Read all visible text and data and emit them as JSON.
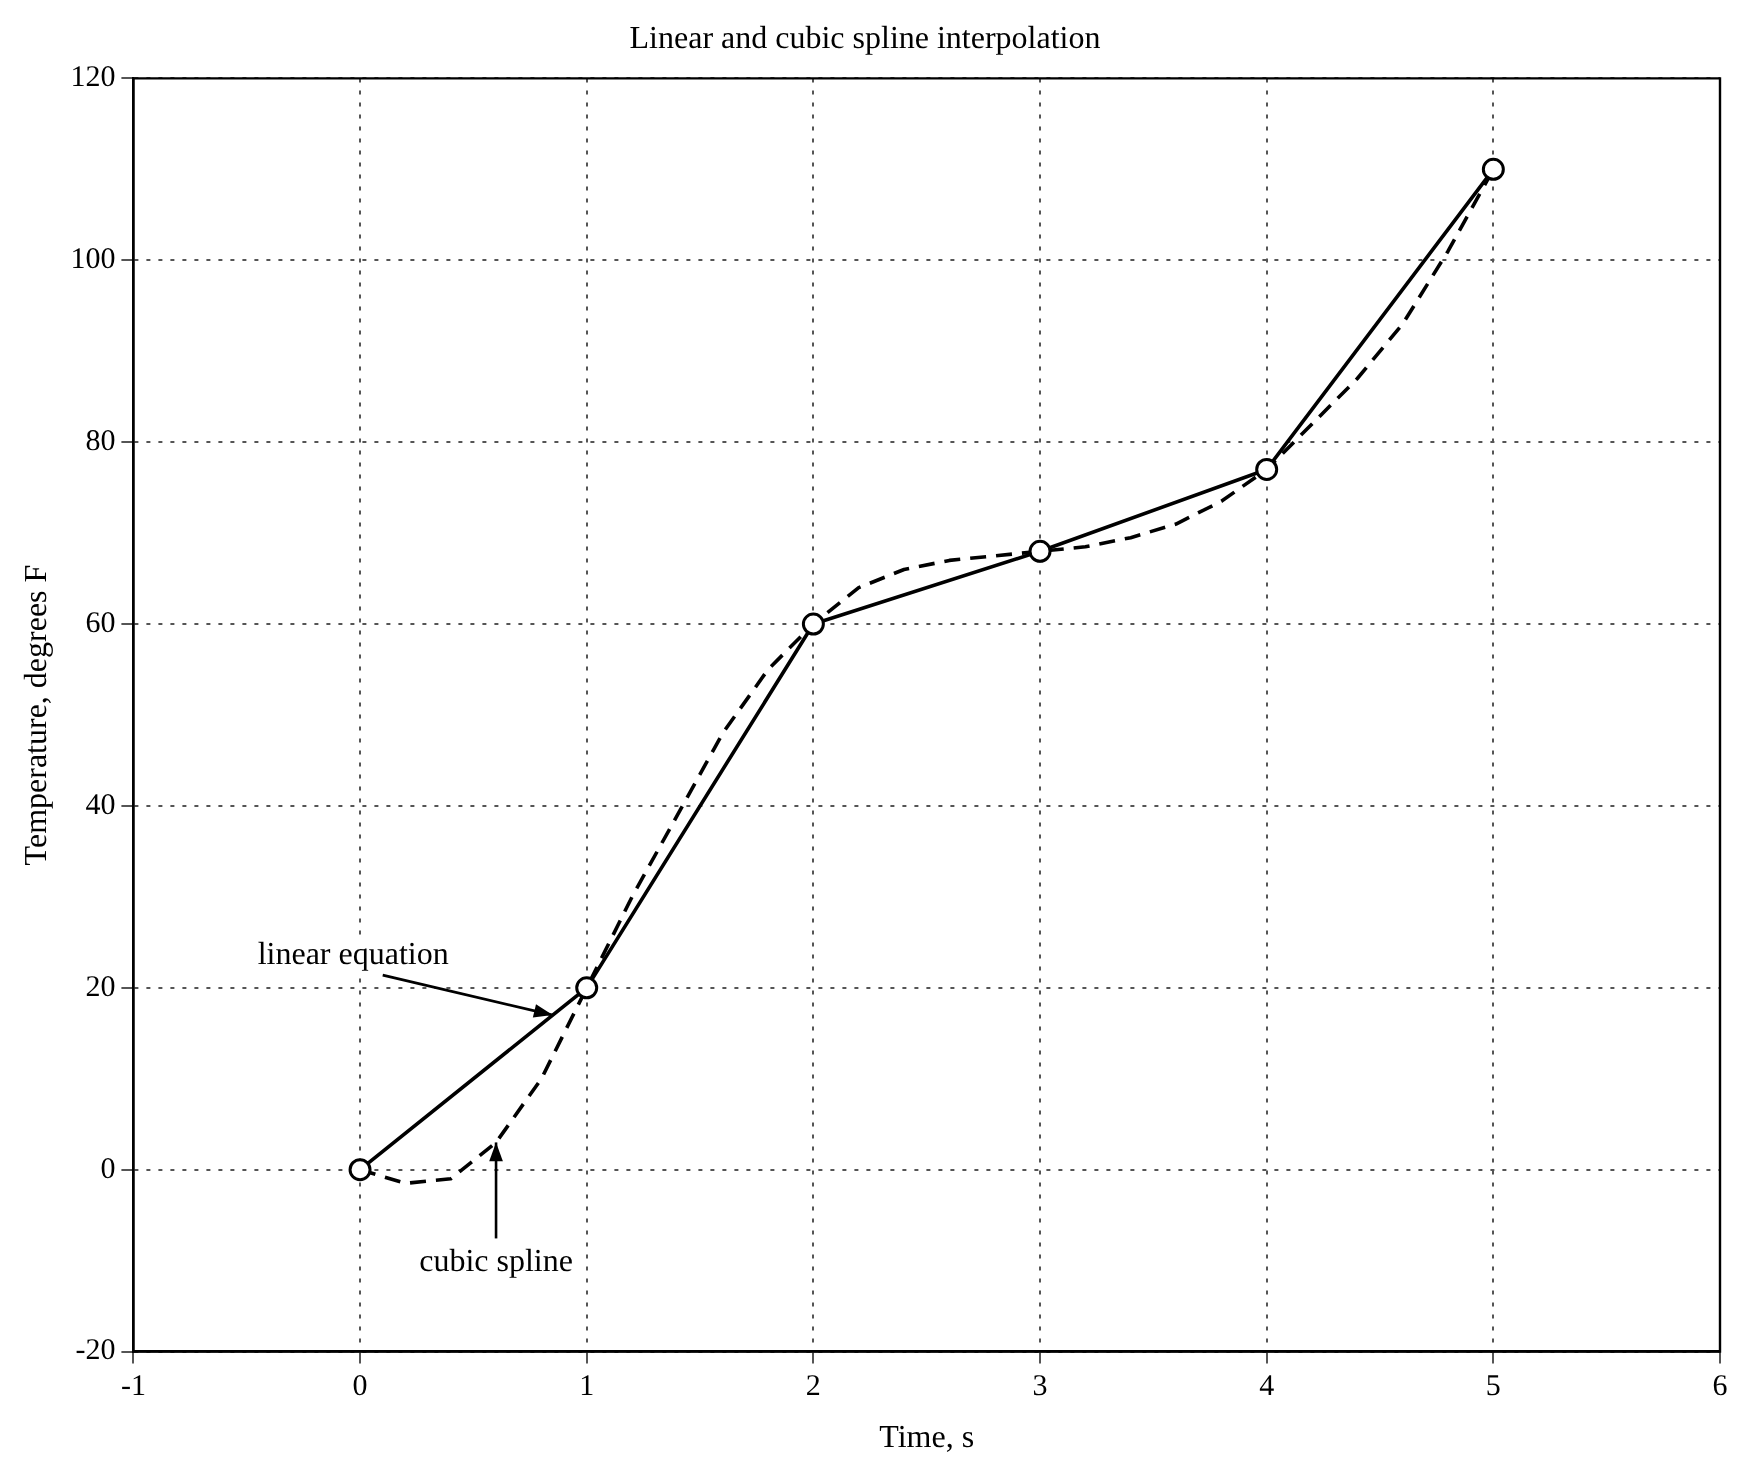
{
  "chart_data": {
    "type": "line",
    "title": "Linear and cubic spline interpolation",
    "xlabel": "Time, s",
    "ylabel": "Temperature, degrees F",
    "xlim": [
      -1,
      6
    ],
    "xticks": [
      -1,
      0,
      1,
      2,
      3,
      4,
      5,
      6
    ],
    "ylim": [
      -20,
      120
    ],
    "yticks": [
      -20,
      0,
      20,
      40,
      60,
      80,
      100,
      120
    ],
    "grid": true,
    "legend": false,
    "series": [
      {
        "color": "#000000",
        "marker": "circle",
        "line_style": "solid",
        "x": [
          0,
          1,
          2,
          3,
          4,
          5
        ],
        "values": [
          0,
          20,
          60,
          68,
          77,
          110
        ]
      },
      {
        "color": "#000000",
        "marker": "none",
        "line_style": "dashed",
        "x": [
          0,
          0.2,
          0.4,
          0.6,
          0.8,
          1,
          1.2,
          1.4,
          1.6,
          1.8,
          2,
          2.2,
          2.4,
          2.6,
          2.8,
          3,
          3.2,
          3.4,
          3.6,
          3.8,
          4,
          4.2,
          4.4,
          4.6,
          4.8,
          5
        ],
        "values": [
          0,
          -1.5,
          -1,
          3,
          10,
          20,
          30,
          39,
          48,
          55,
          60,
          64,
          66,
          67,
          67.5,
          68,
          68.5,
          69.5,
          71,
          73.5,
          77,
          82,
          87,
          93,
          101,
          110
        ]
      }
    ],
    "annotations": [
      {
        "text": "linear equation",
        "x": 0.85,
        "y": 17
      },
      {
        "text": "cubic spline",
        "x": 0.6,
        "y": 3
      }
    ]
  }
}
